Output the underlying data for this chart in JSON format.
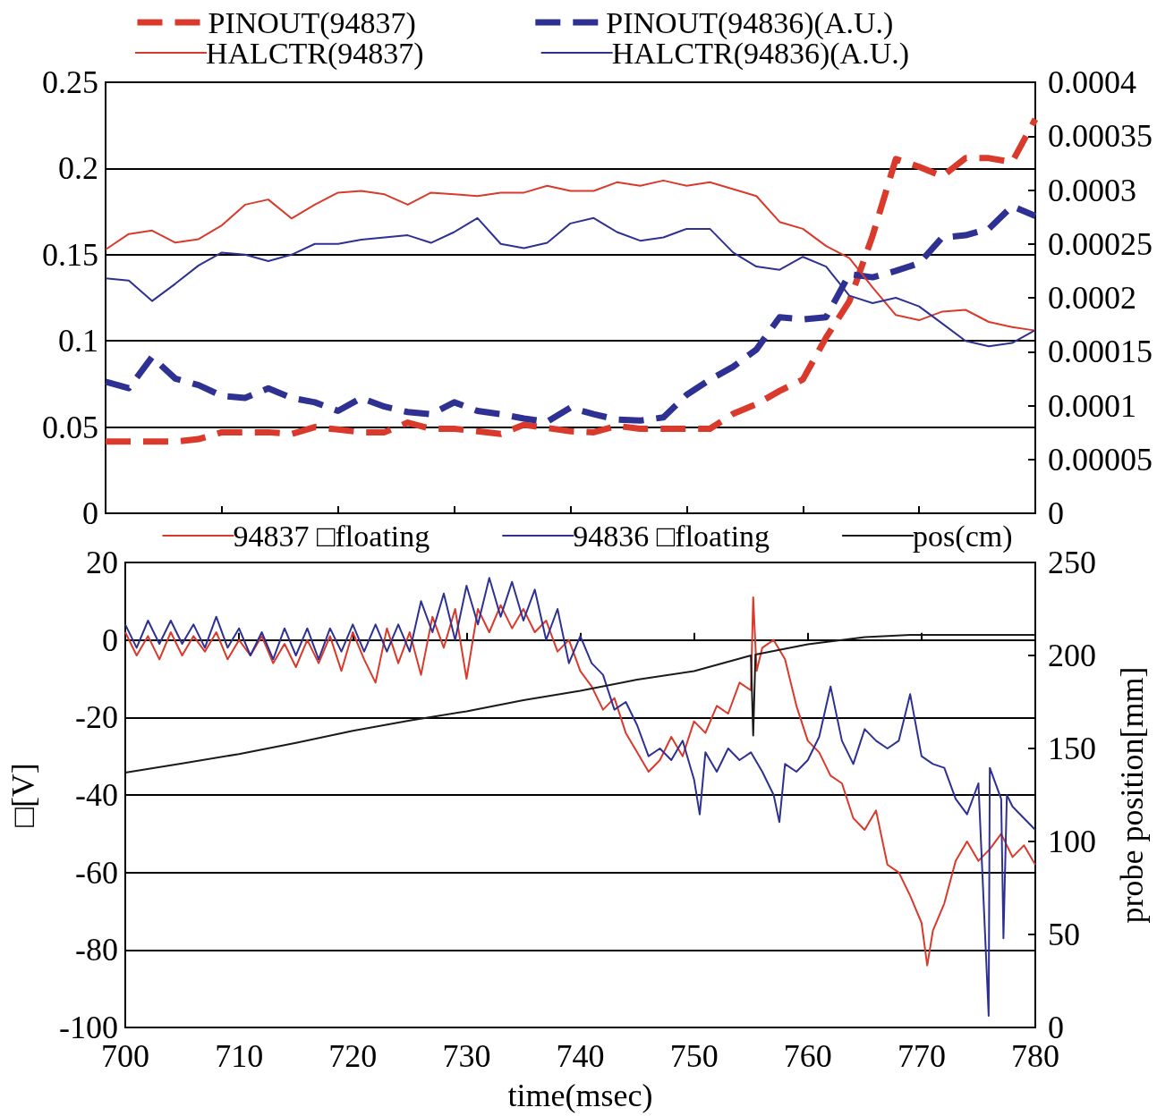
{
  "chart_data": [
    {
      "type": "line",
      "categories": [
        null,
        null,
        null,
        null,
        null,
        null,
        null,
        null,
        null,
        null,
        null,
        null,
        null,
        null,
        null,
        null,
        null,
        null,
        null,
        null,
        null,
        null,
        null,
        null,
        null,
        null,
        null,
        null,
        null,
        null,
        null,
        null,
        null,
        null,
        null,
        null,
        null,
        null,
        null,
        null,
        null
      ],
      "ylim": [
        0,
        0.25
      ],
      "yticks": [
        0,
        0.05,
        0.1,
        0.15,
        0.2,
        0.25
      ],
      "y2lim": [
        0,
        0.0004
      ],
      "y2ticks": [
        0,
        {
          "value": 5e-05,
          "label": "0.00005"
        },
        0.0001,
        0.00015,
        0.0002,
        0.00025,
        0.0003,
        0.00035,
        0.0004
      ],
      "grid": "y",
      "legend": "top",
      "tick_labels": "y",
      "marker": "none",
      "series": [
        {
          "name": "PINOUT(94837)",
          "color": "#d93a2b",
          "line_style": "dashed",
          "values": [
            0.0416,
            0.0416,
            0.0416,
            0.0416,
            0.043,
            0.047,
            0.047,
            0.047,
            0.046,
            0.05,
            0.0486,
            0.047,
            0.047,
            0.0526,
            0.049,
            0.049,
            0.0476,
            0.046,
            0.0513,
            0.0495,
            0.0476,
            0.047,
            0.0507,
            0.049,
            0.049,
            0.049,
            0.049,
            0.0577,
            0.0633,
            0.071,
            0.0776,
            0.102,
            0.123,
            0.161,
            0.2055,
            0.201,
            0.1955,
            0.206,
            0.206,
            0.2037,
            0.2286
          ]
        },
        {
          "name": "PINOUT(94836)(A.U.)",
          "color": "#2e3192",
          "line_style": "dashed",
          "axis": "y2",
          "values": [
            0.000122,
            0.000116,
            0.000145,
            0.000125,
            0.000119,
            0.000109,
            0.000107,
            0.000116,
            0.000107,
            0.000103,
            9.5e-05,
            0.000107,
            9.9e-05,
            9.4e-05,
            9.2e-05,
            0.000103,
            9.5e-05,
            9.2e-05,
            8.8e-05,
            8.5e-05,
            9.8e-05,
            9.2e-05,
            8.7e-05,
            8.6e-05,
            8.9e-05,
            0.00011,
            0.000124,
            0.000136,
            0.000152,
            0.000182,
            0.00018,
            0.000182,
            0.000222,
            0.000219,
            0.000225,
            0.000232,
            0.000256,
            0.000258,
            0.000264,
            0.000285,
            0.000276
          ]
        },
        {
          "name": "HALCTR(94837)",
          "color": "#d93a2b",
          "line_style": "solid",
          "values": [
            0.153,
            0.162,
            0.164,
            0.157,
            0.159,
            0.167,
            0.179,
            0.182,
            0.171,
            0.179,
            0.186,
            0.187,
            0.185,
            0.179,
            0.186,
            0.185,
            0.184,
            0.186,
            0.186,
            0.19,
            0.187,
            0.187,
            0.192,
            0.19,
            0.193,
            0.19,
            0.192,
            0.188,
            0.184,
            0.169,
            0.165,
            0.155,
            0.148,
            0.131,
            0.115,
            0.112,
            0.117,
            0.118,
            0.111,
            0.108,
            0.106
          ]
        },
        {
          "name": "HALCTR(94836)(A.U.)",
          "color": "#2e3192",
          "line_style": "solid",
          "axis": "y2",
          "values": [
            0.000218,
            0.000216,
            0.000197,
            0.000213,
            0.00023,
            0.000242,
            0.00024,
            0.000234,
            0.00024,
            0.00025,
            0.00025,
            0.000254,
            0.000256,
            0.000258,
            0.000251,
            0.000261,
            0.000274,
            0.00025,
            0.000246,
            0.000251,
            0.000269,
            0.000274,
            0.000261,
            0.000253,
            0.000256,
            0.000264,
            0.000264,
            0.000242,
            0.000229,
            0.000226,
            0.000238,
            0.000229,
            0.000202,
            0.000195,
            0.0002,
            0.000192,
            0.000176,
            0.00016,
            0.000155,
            0.000158,
            0.00017
          ]
        }
      ]
    },
    {
      "type": "line",
      "xlabel": "time(msec)",
      "ylabel": "□[V]",
      "y2label": "probe position[mm]",
      "xlim": [
        700,
        780
      ],
      "xticks": [
        700,
        710,
        720,
        730,
        740,
        750,
        760,
        770,
        780
      ],
      "ylim": [
        -100,
        20
      ],
      "yticks": [
        -100,
        -80,
        -60,
        -40,
        -20,
        0,
        20
      ],
      "y2lim": [
        0,
        250
      ],
      "y2ticks": [
        0,
        50,
        100,
        150,
        200,
        250
      ],
      "grid": "y",
      "legend": "top",
      "marker": "none",
      "series": [
        {
          "name": "94837 □floating",
          "color": "#d93a2b",
          "x": [
            700,
            701,
            702,
            703,
            704,
            705,
            706,
            707,
            708,
            709,
            710,
            711,
            712,
            713,
            714,
            715,
            716,
            717,
            718,
            719,
            720,
            721,
            722,
            723,
            724,
            725,
            726,
            727,
            728,
            729,
            730,
            731,
            732,
            733,
            734,
            735,
            736,
            737,
            738,
            739,
            740,
            741,
            742,
            743,
            744,
            745,
            746,
            747,
            748,
            749,
            750,
            751,
            752,
            753,
            754,
            755,
            755.2,
            755.5,
            756,
            757,
            758,
            759,
            760,
            761,
            762,
            763,
            764,
            765,
            766,
            767,
            768,
            769,
            770,
            770.5,
            771,
            772,
            773,
            774,
            775,
            776,
            777,
            778,
            779,
            780
          ],
          "values": [
            2,
            -4,
            1,
            -5,
            2,
            -4,
            1,
            -3,
            2,
            -5,
            0,
            -4,
            1,
            -6,
            -1,
            -7,
            0,
            -6,
            1,
            -8,
            2,
            -5,
            -11,
            3,
            -6,
            2,
            -9,
            6,
            -2,
            8,
            -10,
            8,
            2,
            9,
            3,
            8,
            2,
            5,
            -3,
            0,
            -8,
            -12,
            -18,
            -15,
            -24,
            -29,
            -34,
            -31,
            -25,
            -30,
            -21,
            -24,
            -17,
            -19,
            -11,
            -13,
            11,
            -8,
            -2,
            0,
            -5,
            -17,
            -26,
            -29,
            -35,
            -37,
            -46,
            -49,
            -44,
            -58,
            -60,
            -66,
            -73,
            -84,
            -75,
            -68,
            -57,
            -52,
            -57,
            -54,
            -50,
            -56,
            -53,
            -58
          ]
        },
        {
          "name": "94836 □floating",
          "color": "#2e3192",
          "x": [
            700,
            701,
            702,
            703,
            704,
            705,
            706,
            707,
            708,
            709,
            710,
            711,
            712,
            713,
            714,
            715,
            716,
            717,
            718,
            719,
            720,
            721,
            722,
            723,
            724,
            725,
            726,
            727,
            728,
            729,
            730,
            731,
            732,
            733,
            734,
            735,
            736,
            737,
            738,
            739,
            740,
            741,
            742,
            743,
            744,
            745,
            746,
            747,
            748,
            749,
            750,
            750.5,
            751,
            752,
            753,
            754,
            755,
            756,
            757,
            757.5,
            758,
            759,
            760,
            761,
            762,
            763,
            764,
            765,
            766,
            767,
            768,
            769,
            770,
            771,
            772,
            773,
            774,
            775,
            775.9,
            776,
            777,
            777.2,
            777.5,
            778,
            779,
            780
          ],
          "values": [
            4,
            -2,
            5,
            -1,
            5,
            -1,
            4,
            -2,
            6,
            -2,
            3,
            -4,
            2,
            -5,
            3,
            -4,
            3,
            -5,
            3,
            -3,
            4,
            -3,
            4,
            -3,
            4,
            -3,
            10,
            2,
            12,
            0,
            14,
            4,
            16,
            6,
            15,
            5,
            13,
            0,
            8,
            -6,
            1,
            -6,
            -9,
            -18,
            -16,
            -22,
            -30,
            -28,
            -31,
            -26,
            -36,
            -45,
            -29,
            -34,
            -28,
            -31,
            -29,
            -34,
            -40,
            -47,
            -32,
            -34,
            -31,
            -25,
            -12,
            -26,
            -32,
            -23,
            -26,
            -28,
            -26,
            -14,
            -30,
            -32,
            -33,
            -41,
            -45,
            -37,
            -97,
            -33,
            -41,
            -77,
            -40,
            -43,
            -46,
            -49
          ]
        },
        {
          "name": "pos(cm)",
          "color": "#1a1a1a",
          "axis": "y2",
          "x": [
            700,
            705,
            710,
            715,
            720,
            725,
            730,
            735,
            740,
            745,
            750,
            755,
            755.2,
            755.4,
            760,
            765,
            769,
            780
          ],
          "values": [
            137,
            142,
            147,
            153,
            159.5,
            165,
            170,
            176,
            181,
            187,
            191.6,
            200,
            157,
            200.5,
            206,
            209.8,
            211,
            211
          ]
        }
      ]
    }
  ]
}
